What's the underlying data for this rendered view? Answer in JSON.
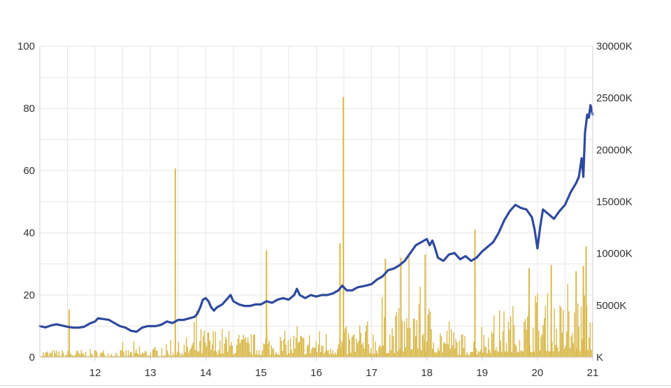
{
  "chart_data": {
    "type": "line",
    "title": "",
    "xlabel": "",
    "ylabel": "",
    "y2label": "",
    "grid": true,
    "legend": "none",
    "x_tick_labels": [
      "12",
      "13",
      "14",
      "15",
      "16",
      "17",
      "18",
      "19",
      "20",
      "21"
    ],
    "x_range": [
      11,
      21
    ],
    "y_left_tick_labels": [
      "0",
      "20",
      "40",
      "60",
      "80",
      "100"
    ],
    "y_left_range": [
      0,
      100
    ],
    "y_right_tick_labels": [
      "K",
      "5000K",
      "10000K",
      "15000K",
      "20000K",
      "25000K",
      "30000K"
    ],
    "y_right_range": [
      0,
      30000
    ],
    "series": [
      {
        "type": "line",
        "axis": "left",
        "color": "#2f4a9e",
        "points": [
          [
            11.0,
            10.0
          ],
          [
            11.1,
            9.6
          ],
          [
            11.2,
            10.2
          ],
          [
            11.3,
            10.6
          ],
          [
            11.4,
            10.2
          ],
          [
            11.5,
            9.8
          ],
          [
            11.6,
            9.5
          ],
          [
            11.7,
            9.5
          ],
          [
            11.8,
            9.8
          ],
          [
            11.9,
            10.8
          ],
          [
            12.0,
            11.5
          ],
          [
            12.05,
            12.5
          ],
          [
            12.15,
            12.3
          ],
          [
            12.25,
            12.0
          ],
          [
            12.35,
            11.0
          ],
          [
            12.45,
            10.0
          ],
          [
            12.55,
            9.5
          ],
          [
            12.65,
            8.5
          ],
          [
            12.75,
            8.2
          ],
          [
            12.85,
            9.5
          ],
          [
            12.95,
            10.0
          ],
          [
            13.1,
            10.0
          ],
          [
            13.2,
            10.5
          ],
          [
            13.3,
            11.5
          ],
          [
            13.4,
            11.0
          ],
          [
            13.5,
            12.0
          ],
          [
            13.6,
            12.0
          ],
          [
            13.7,
            12.5
          ],
          [
            13.8,
            13.0
          ],
          [
            13.85,
            14.0
          ],
          [
            13.9,
            16.0
          ],
          [
            13.95,
            18.5
          ],
          [
            14.0,
            19.0
          ],
          [
            14.05,
            18.0
          ],
          [
            14.1,
            16.0
          ],
          [
            14.15,
            15.0
          ],
          [
            14.2,
            16.0
          ],
          [
            14.3,
            17.0
          ],
          [
            14.4,
            19.0
          ],
          [
            14.45,
            20.0
          ],
          [
            14.5,
            18.0
          ],
          [
            14.6,
            17.0
          ],
          [
            14.7,
            16.5
          ],
          [
            14.8,
            16.5
          ],
          [
            14.9,
            17.0
          ],
          [
            15.0,
            17.0
          ],
          [
            15.1,
            18.0
          ],
          [
            15.2,
            17.5
          ],
          [
            15.3,
            18.5
          ],
          [
            15.4,
            19.0
          ],
          [
            15.5,
            18.5
          ],
          [
            15.6,
            20.0
          ],
          [
            15.65,
            22.0
          ],
          [
            15.7,
            20.0
          ],
          [
            15.8,
            19.0
          ],
          [
            15.9,
            20.0
          ],
          [
            16.0,
            19.5
          ],
          [
            16.1,
            20.0
          ],
          [
            16.2,
            20.0
          ],
          [
            16.3,
            20.5
          ],
          [
            16.4,
            21.5
          ],
          [
            16.47,
            23.0
          ],
          [
            16.55,
            21.5
          ],
          [
            16.65,
            21.5
          ],
          [
            16.75,
            22.5
          ],
          [
            16.9,
            23.0
          ],
          [
            17.0,
            23.5
          ],
          [
            17.1,
            25.0
          ],
          [
            17.2,
            26.0
          ],
          [
            17.3,
            28.0
          ],
          [
            17.4,
            28.5
          ],
          [
            17.5,
            29.5
          ],
          [
            17.6,
            31.0
          ],
          [
            17.7,
            33.5
          ],
          [
            17.8,
            36.0
          ],
          [
            17.9,
            37.0
          ],
          [
            18.0,
            38.0
          ],
          [
            18.05,
            36.0
          ],
          [
            18.1,
            37.5
          ],
          [
            18.15,
            35.0
          ],
          [
            18.2,
            32.0
          ],
          [
            18.3,
            31.0
          ],
          [
            18.4,
            33.0
          ],
          [
            18.5,
            33.5
          ],
          [
            18.6,
            31.5
          ],
          [
            18.7,
            32.5
          ],
          [
            18.8,
            31.0
          ],
          [
            18.9,
            32.0
          ],
          [
            19.0,
            34.0
          ],
          [
            19.1,
            35.5
          ],
          [
            19.2,
            37.0
          ],
          [
            19.3,
            40.0
          ],
          [
            19.4,
            44.0
          ],
          [
            19.5,
            47.0
          ],
          [
            19.6,
            49.0
          ],
          [
            19.7,
            48.0
          ],
          [
            19.8,
            47.5
          ],
          [
            19.9,
            45.0
          ],
          [
            19.95,
            41.0
          ],
          [
            20.0,
            35.0
          ],
          [
            20.05,
            42.0
          ],
          [
            20.1,
            47.5
          ],
          [
            20.2,
            46.0
          ],
          [
            20.3,
            44.5
          ],
          [
            20.4,
            47.0
          ],
          [
            20.5,
            49.0
          ],
          [
            20.6,
            53.0
          ],
          [
            20.7,
            56.0
          ],
          [
            20.75,
            58.0
          ],
          [
            20.8,
            64.0
          ],
          [
            20.83,
            58.0
          ],
          [
            20.86,
            72.0
          ],
          [
            20.9,
            78.0
          ],
          [
            20.93,
            77.0
          ],
          [
            20.96,
            81.0
          ],
          [
            21.0,
            78.0
          ]
        ]
      },
      {
        "type": "bar",
        "axis": "right",
        "color": "#d9b84a",
        "base_segments": [
          [
            11.0,
            500
          ],
          [
            11.5,
            450
          ],
          [
            12.0,
            500
          ],
          [
            12.5,
            500
          ],
          [
            13.0,
            600
          ],
          [
            13.5,
            900
          ],
          [
            13.9,
            1800
          ],
          [
            14.2,
            1900
          ],
          [
            14.5,
            1600
          ],
          [
            15.0,
            1400
          ],
          [
            15.5,
            1600
          ],
          [
            16.0,
            1700
          ],
          [
            16.5,
            1800
          ],
          [
            17.0,
            2000
          ],
          [
            17.5,
            3000
          ],
          [
            17.8,
            4500
          ],
          [
            18.0,
            3500
          ],
          [
            18.3,
            2200
          ],
          [
            18.6,
            1500
          ],
          [
            18.9,
            1300
          ],
          [
            19.0,
            2400
          ],
          [
            19.5,
            3200
          ],
          [
            19.9,
            3300
          ],
          [
            20.0,
            4200
          ],
          [
            20.5,
            3300
          ],
          [
            20.8,
            3800
          ],
          [
            21.0,
            4500
          ]
        ],
        "spikes": [
          [
            11.53,
            4600
          ],
          [
            13.45,
            18200
          ],
          [
            15.1,
            10300
          ],
          [
            16.43,
            11000
          ],
          [
            16.49,
            25100
          ],
          [
            17.25,
            9500
          ],
          [
            17.53,
            9600
          ],
          [
            17.97,
            9900
          ],
          [
            18.87,
            12300
          ],
          [
            19.85,
            8600
          ],
          [
            20.25,
            8900
          ],
          [
            20.7,
            8300
          ],
          [
            20.83,
            8800
          ],
          [
            20.88,
            10700
          ]
        ]
      }
    ]
  }
}
